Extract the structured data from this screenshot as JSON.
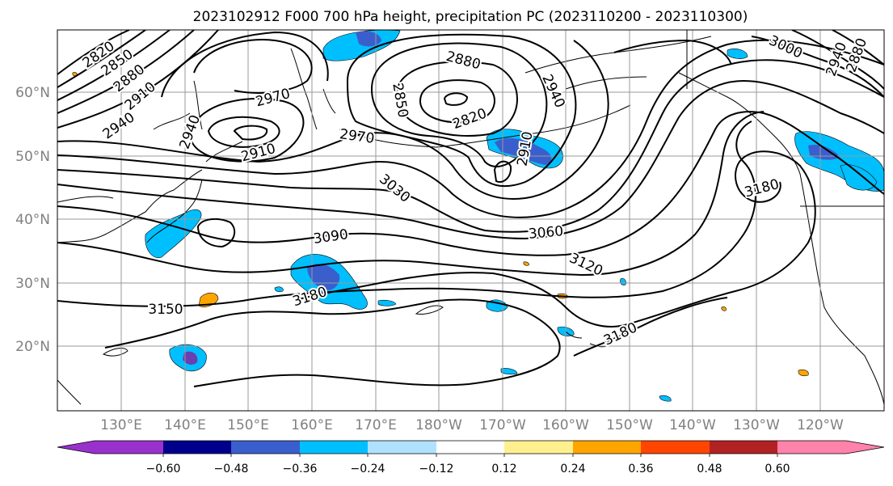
{
  "title": "2023102912 F000 700 hPa height, precipitation PC (2023110200 - 2023110300)",
  "lat_labels": [
    "60°N",
    "50°N",
    "40°N",
    "30°N",
    "20°N"
  ],
  "lon_labels": [
    "130°E",
    "140°E",
    "150°E",
    "160°E",
    "170°E",
    "180°W",
    "170°W",
    "160°W",
    "150°W",
    "140°W",
    "130°W",
    "120°W"
  ],
  "contour_labels": [
    "2820",
    "2850",
    "2880",
    "2910",
    "2940",
    "2970",
    "2940",
    "2910",
    "2880",
    "2850",
    "2820",
    "2940",
    "2910",
    "2970",
    "3030",
    "3000",
    "2940",
    "2880",
    "3090",
    "3060",
    "3120",
    "3150",
    "3180",
    "3180",
    "3180"
  ],
  "colorbar": {
    "colors": [
      "#9932cc",
      "#00008b",
      "#3a5fcd",
      "#00bfff",
      "#b0e2ff",
      "#ffffff",
      "#fff08f",
      "#ffa500",
      "#ff4500",
      "#b22222",
      "#ff82ab"
    ],
    "tick_labels": [
      "−0.60",
      "−0.48",
      "−0.36",
      "−0.24",
      "−0.12",
      "0.12",
      "0.24",
      "0.36",
      "0.48",
      "0.60"
    ]
  },
  "map_colors": {
    "contour": "#000000",
    "grid": "#9a9a9a",
    "neg_light": "#00bfff",
    "neg_mid": "#3a5fcd",
    "neg_strong": "#6a3fb0",
    "pos_light": "#ffa500"
  }
}
